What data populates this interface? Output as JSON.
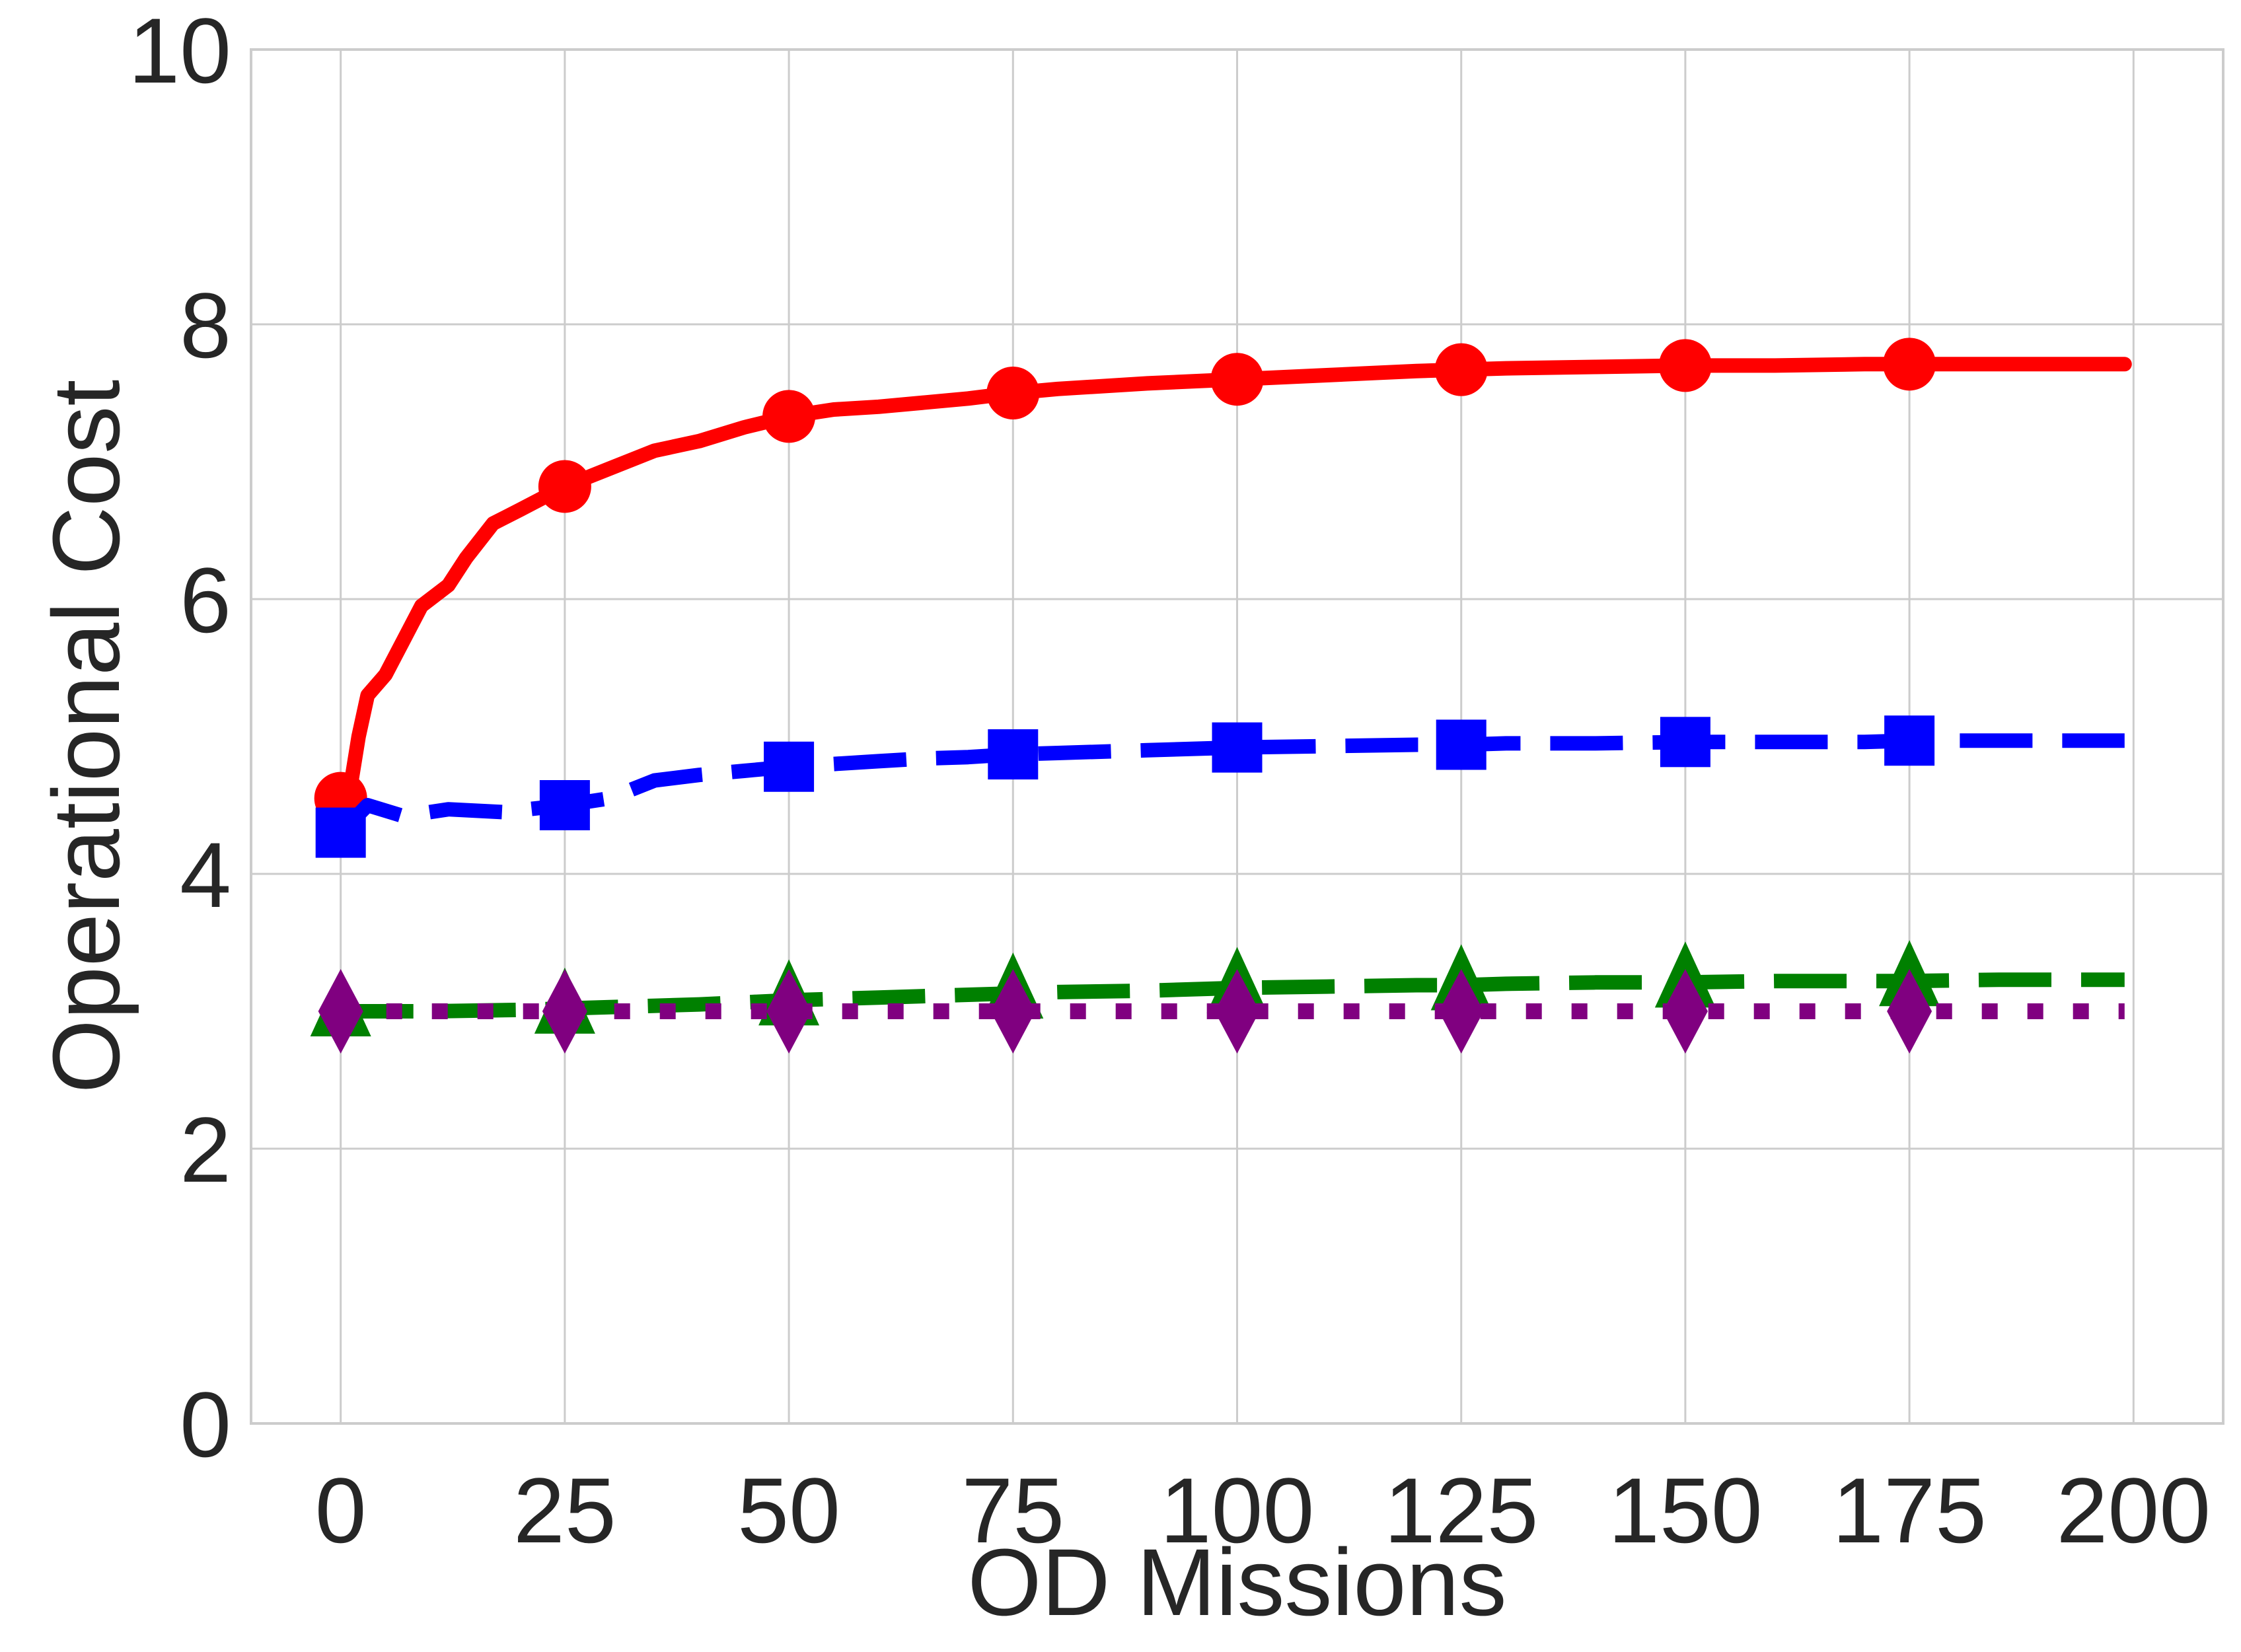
{
  "chart_data": {
    "type": "line",
    "title": "",
    "xlabel": "OD Missions",
    "ylabel": "Operational Cost",
    "xlim": [
      -10,
      210
    ],
    "ylim": [
      0,
      10
    ],
    "xticks": [
      0,
      25,
      50,
      75,
      100,
      125,
      150,
      175,
      200
    ],
    "yticks": [
      0,
      2,
      4,
      6,
      8,
      10
    ],
    "grid": true,
    "legend": "none",
    "series": [
      {
        "color": "#ff0000",
        "line_style": "solid",
        "marker": "circle",
        "marker_x": [
          0,
          25,
          50,
          75,
          100,
          125,
          150,
          175
        ],
        "x": [
          0,
          1,
          2,
          3,
          5,
          7,
          9,
          12,
          14,
          17,
          20,
          25,
          30,
          35,
          40,
          45,
          50,
          55,
          60,
          65,
          70,
          75,
          80,
          90,
          100,
          110,
          120,
          125,
          130,
          140,
          150,
          160,
          170,
          175,
          185,
          199
        ],
        "y": [
          4.55,
          4.6,
          5.0,
          5.3,
          5.45,
          5.7,
          5.95,
          6.1,
          6.3,
          6.55,
          6.65,
          6.82,
          6.95,
          7.08,
          7.15,
          7.25,
          7.33,
          7.38,
          7.4,
          7.43,
          7.46,
          7.5,
          7.53,
          7.57,
          7.6,
          7.63,
          7.66,
          7.67,
          7.68,
          7.69,
          7.7,
          7.7,
          7.71,
          7.71,
          7.71,
          7.71
        ]
      },
      {
        "color": "#0000ff",
        "line_style": "dashed",
        "marker": "square",
        "marker_x": [
          0,
          25,
          50,
          75,
          100,
          125,
          150,
          175
        ],
        "x": [
          0,
          3,
          7,
          12,
          18,
          25,
          30,
          35,
          40,
          45,
          50,
          55,
          60,
          65,
          70,
          75,
          80,
          90,
          100,
          110,
          120,
          125,
          130,
          140,
          150,
          160,
          170,
          175,
          185,
          199
        ],
        "y": [
          4.3,
          4.5,
          4.42,
          4.47,
          4.45,
          4.5,
          4.55,
          4.68,
          4.72,
          4.75,
          4.78,
          4.8,
          4.82,
          4.84,
          4.85,
          4.87,
          4.88,
          4.9,
          4.92,
          4.93,
          4.94,
          4.94,
          4.95,
          4.95,
          4.96,
          4.96,
          4.96,
          4.97,
          4.97,
          4.97
        ]
      },
      {
        "color": "#008000",
        "line_style": "dashed",
        "marker": "triangle",
        "marker_x": [
          0,
          25,
          50,
          75,
          100,
          125,
          150,
          175
        ],
        "x": [
          0,
          10,
          20,
          25,
          30,
          40,
          50,
          60,
          70,
          75,
          80,
          90,
          100,
          110,
          120,
          125,
          130,
          140,
          150,
          160,
          170,
          175,
          185,
          199
        ],
        "y": [
          3.0,
          3.0,
          3.01,
          3.02,
          3.03,
          3.05,
          3.08,
          3.1,
          3.12,
          3.13,
          3.14,
          3.15,
          3.17,
          3.18,
          3.19,
          3.19,
          3.2,
          3.21,
          3.21,
          3.22,
          3.22,
          3.22,
          3.23,
          3.23
        ]
      },
      {
        "color": "#800080",
        "line_style": "dotted",
        "marker": "diamond",
        "marker_x": [
          0,
          25,
          50,
          75,
          100,
          125,
          150,
          175
        ],
        "x": [
          0,
          50,
          100,
          150,
          199
        ],
        "y": [
          3.0,
          3.0,
          3.0,
          3.0,
          3.0
        ]
      }
    ]
  }
}
